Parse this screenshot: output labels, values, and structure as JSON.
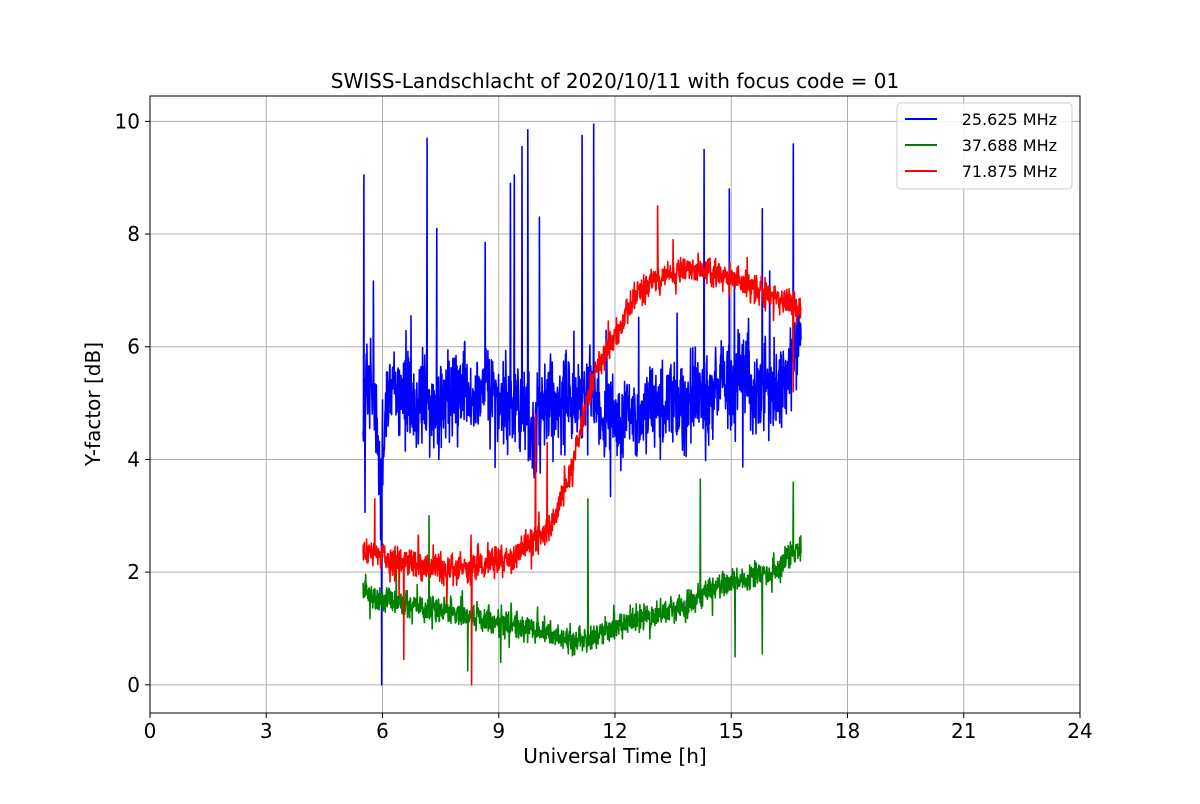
{
  "chart_data": {
    "type": "line",
    "title": "SWISS-Landschlacht of 2020/10/11 with focus code = 01",
    "xlabel": "Universal Time [h]",
    "ylabel": "Y-factor [dB]",
    "xlim": [
      0,
      24
    ],
    "ylim": [
      -0.5,
      10.45
    ],
    "xticks": [
      0,
      3,
      6,
      9,
      12,
      15,
      18,
      21,
      24
    ],
    "xtick_labels": [
      "0",
      "3",
      "6",
      "9",
      "12",
      "15",
      "18",
      "21",
      "24"
    ],
    "yticks": [
      0,
      2,
      4,
      6,
      8,
      10
    ],
    "ytick_labels": [
      "0",
      "2",
      "4",
      "6",
      "8",
      "10"
    ],
    "grid": true,
    "legend_position": "top-right",
    "series": [
      {
        "name": "25.625 MHz",
        "color": "#0000ff",
        "x": [
          5.5,
          5.6,
          5.8,
          5.95,
          6.1,
          6.3,
          6.5,
          6.7,
          6.9,
          7.1,
          7.3,
          7.5,
          7.8,
          8.1,
          8.4,
          8.7,
          9.0,
          9.3,
          9.6,
          9.9,
          10.2,
          10.5,
          10.8,
          11.1,
          11.4,
          11.7,
          12.0,
          12.3,
          12.6,
          12.9,
          13.2,
          13.5,
          13.8,
          14.1,
          14.4,
          14.7,
          15.0,
          15.3,
          15.6,
          15.9,
          16.2,
          16.5,
          16.8
        ],
        "y": [
          5.2,
          5.5,
          5.0,
          3.5,
          4.9,
          5.3,
          5.0,
          5.1,
          4.8,
          5.2,
          4.6,
          5.0,
          5.1,
          5.2,
          5.0,
          5.3,
          5.1,
          5.0,
          4.9,
          4.4,
          5.1,
          5.0,
          5.2,
          4.9,
          5.3,
          4.7,
          4.8,
          4.9,
          4.7,
          5.0,
          4.9,
          5.1,
          4.9,
          5.2,
          5.0,
          5.5,
          5.2,
          5.6,
          5.0,
          5.4,
          5.1,
          5.8,
          6.1
        ],
        "spikes": [
          [
            5.52,
            9.05
          ],
          [
            5.98,
            0.0
          ],
          [
            7.15,
            9.7
          ],
          [
            7.4,
            8.1
          ],
          [
            8.65,
            7.85
          ],
          [
            9.3,
            8.9
          ],
          [
            9.4,
            9.05
          ],
          [
            9.6,
            9.55
          ],
          [
            9.75,
            9.85
          ],
          [
            10.05,
            8.3
          ],
          [
            11.15,
            9.75
          ],
          [
            11.45,
            9.95
          ],
          [
            14.3,
            9.5
          ],
          [
            16.6,
            9.6
          ],
          [
            15.8,
            8.45
          ],
          [
            14.95,
            8.8
          ]
        ]
      },
      {
        "name": "37.688 MHz",
        "color": "#008000",
        "x": [
          5.5,
          5.8,
          6.2,
          6.6,
          7.0,
          7.4,
          7.8,
          8.2,
          8.6,
          9.0,
          9.4,
          9.8,
          10.2,
          10.6,
          11.0,
          11.4,
          11.8,
          12.2,
          12.6,
          13.0,
          13.4,
          13.8,
          14.2,
          14.6,
          15.0,
          15.4,
          15.8,
          16.2,
          16.5,
          16.8
        ],
        "y": [
          1.65,
          1.55,
          1.5,
          1.45,
          1.4,
          1.35,
          1.3,
          1.25,
          1.2,
          1.1,
          1.05,
          1.0,
          0.95,
          0.85,
          0.75,
          0.85,
          0.95,
          1.05,
          1.15,
          1.25,
          1.3,
          1.4,
          1.6,
          1.75,
          1.8,
          1.9,
          1.95,
          2.05,
          2.3,
          2.45
        ],
        "spikes": [
          [
            7.2,
            3.0
          ],
          [
            11.3,
            3.3
          ],
          [
            14.2,
            3.65
          ],
          [
            16.6,
            3.6
          ],
          [
            15.8,
            0.55
          ],
          [
            15.1,
            0.5
          ],
          [
            8.2,
            0.25
          ],
          [
            9.05,
            0.4
          ]
        ]
      },
      {
        "name": "71.875 MHz",
        "color": "#ff0000",
        "x": [
          5.5,
          5.8,
          6.2,
          6.6,
          7.0,
          7.4,
          7.8,
          8.2,
          8.6,
          9.0,
          9.4,
          9.7,
          10.0,
          10.3,
          10.6,
          10.9,
          11.2,
          11.5,
          11.8,
          12.1,
          12.4,
          12.7,
          13.0,
          13.3,
          13.6,
          13.9,
          14.2,
          14.5,
          14.8,
          15.1,
          15.4,
          15.7,
          16.0,
          16.3,
          16.6,
          16.8
        ],
        "y": [
          2.4,
          2.3,
          2.2,
          2.15,
          2.1,
          2.05,
          2.05,
          2.1,
          2.15,
          2.2,
          2.25,
          2.5,
          2.6,
          2.8,
          3.3,
          3.9,
          4.8,
          5.6,
          5.9,
          6.3,
          6.8,
          7.0,
          7.15,
          7.2,
          7.35,
          7.4,
          7.4,
          7.3,
          7.25,
          7.2,
          7.1,
          7.0,
          6.95,
          6.85,
          6.75,
          6.6
        ],
        "spikes": [
          [
            5.8,
            3.3
          ],
          [
            9.95,
            4.8
          ],
          [
            8.3,
            0.0
          ],
          [
            6.55,
            0.45
          ],
          [
            13.1,
            8.5
          ],
          [
            10.25,
            4.3
          ],
          [
            13.5,
            7.9
          ],
          [
            16.6,
            5.2
          ]
        ]
      }
    ]
  }
}
